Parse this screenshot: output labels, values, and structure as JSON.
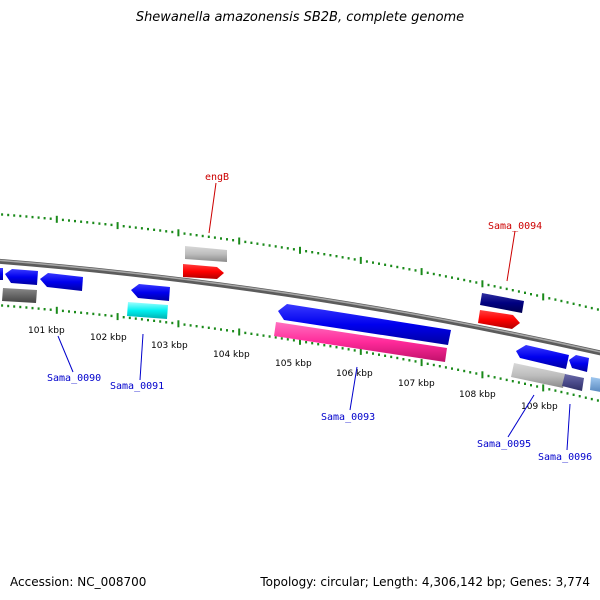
{
  "title": "Shewanella amazonensis SB2B, complete genome",
  "footer": {
    "accession": "Accession: NC_008700",
    "summary": "Topology: circular; Length: 4,306,142 bp; Genes: 3,774"
  },
  "colors": {
    "backbone": "#808080",
    "tick": "#1a8a1a",
    "label_forward": "#cc0000",
    "label_reverse": "#0000cc"
  },
  "ticks": [
    {
      "label": "101 kbp"
    },
    {
      "label": "102 kbp"
    },
    {
      "label": "103 kbp"
    },
    {
      "label": "104 kbp"
    },
    {
      "label": "105 kbp"
    },
    {
      "label": "106 kbp"
    },
    {
      "label": "107 kbp"
    },
    {
      "label": "108 kbp"
    },
    {
      "label": "109 kbp"
    }
  ],
  "gene_labels": [
    {
      "name": "engB",
      "strand": "forward"
    },
    {
      "name": "Sama_0094",
      "strand": "forward"
    },
    {
      "name": "Sama_0090",
      "strand": "reverse"
    },
    {
      "name": "Sama_0091",
      "strand": "reverse"
    },
    {
      "name": "Sama_0093",
      "strand": "reverse"
    },
    {
      "name": "Sama_0095",
      "strand": "reverse"
    },
    {
      "name": "Sama_0096",
      "strand": "reverse"
    }
  ]
}
